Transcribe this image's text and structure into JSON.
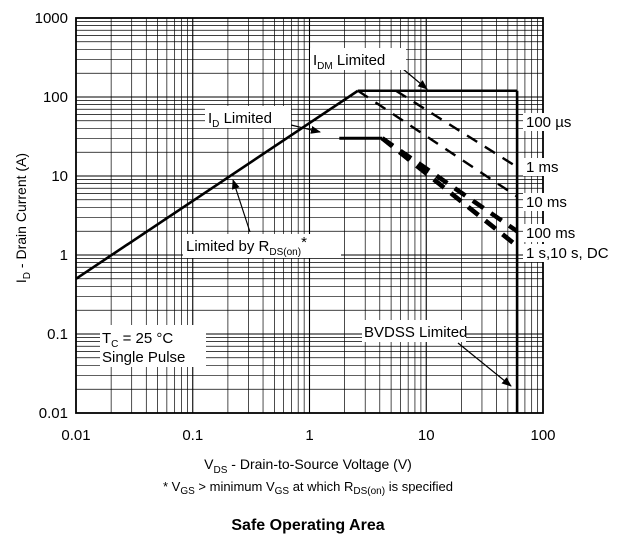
{
  "caption": "Safe Operating Area",
  "chart_data": {
    "type": "line",
    "x_scale": "log",
    "y_scale": "log",
    "xlim": [
      0.01,
      100
    ],
    "ylim": [
      0.01,
      1000
    ],
    "grid": true,
    "x_ticks": [
      "0.01",
      "0.1",
      "1",
      "10",
      "100"
    ],
    "y_ticks": [
      "0.01",
      "0.1",
      "1",
      "10",
      "100",
      "1000"
    ],
    "xlabel": {
      "pre": "V",
      "sub": "DS",
      "post": " - Drain-to-Source Voltage (V)"
    },
    "ylabel": {
      "pre": "I",
      "sub": "D",
      "post": " - Drain Current (A)"
    },
    "footnote": {
      "p1": "* V",
      "s1": "GS",
      "p2": " > minimum V",
      "s2": "GS",
      "p3": " at which R",
      "s3": "DS(on)",
      "p4": " is specified"
    },
    "conditions": {
      "tc": {
        "pre": "T",
        "sub": "C",
        "post": " = 25 °C"
      },
      "pulse": "Single Pulse"
    },
    "limit_lines": [
      {
        "name": "rds_on",
        "style": "solid",
        "points": [
          [
            0.01,
            0.5
          ],
          [
            2.6,
            120
          ]
        ]
      },
      {
        "name": "idm",
        "style": "solid",
        "points": [
          [
            2.6,
            120
          ],
          [
            60,
            120
          ]
        ]
      },
      {
        "name": "bvdss",
        "style": "solid",
        "points": [
          [
            60,
            0.01
          ],
          [
            60,
            120
          ]
        ]
      },
      {
        "name": "id",
        "style": "solid",
        "points": [
          [
            1.8,
            30
          ],
          [
            4.2,
            30
          ]
        ]
      }
    ],
    "series": [
      {
        "name": "100 µs",
        "style": "dashed-thin",
        "points": [
          [
            5.5,
            120
          ],
          [
            60,
            13
          ]
        ]
      },
      {
        "name": "1 ms",
        "style": "dashed-thin",
        "points": [
          [
            2.6,
            120
          ],
          [
            60,
            5.5
          ]
        ]
      },
      {
        "name": "10 ms",
        "style": "dashed-thick",
        "points": [
          [
            4.2,
            30
          ],
          [
            60,
            2
          ]
        ]
      },
      {
        "name": "100 ms",
        "style": "dashed-thick",
        "points": [
          [
            4.2,
            30
          ],
          [
            60,
            1.3
          ]
        ]
      },
      {
        "name": "1 s,10 s, DC",
        "style": "dashed-thick",
        "points": [
          [
            4.2,
            30
          ],
          [
            60,
            1.3
          ]
        ]
      }
    ],
    "annotations": {
      "idm": {
        "pre": "I",
        "sub": "DM",
        "post": " Limited"
      },
      "id": {
        "pre": "I",
        "sub": "D",
        "post": " Limited"
      },
      "rdson": {
        "pre": "Limited by R",
        "sub": "DS(on)",
        "post": "*"
      },
      "bvdss": "BVDSS Limited"
    }
  }
}
